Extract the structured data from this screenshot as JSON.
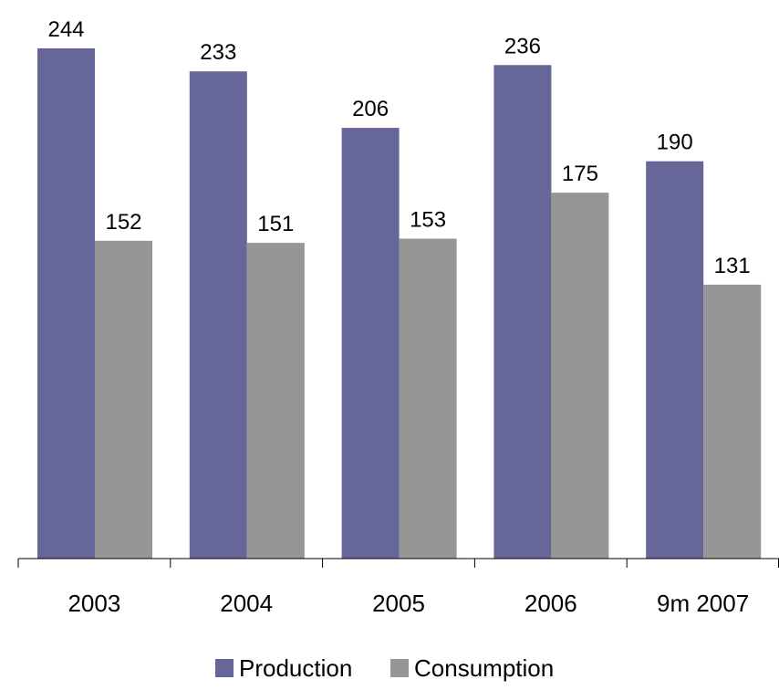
{
  "chart_data": {
    "type": "bar",
    "categories": [
      "2003",
      "2004",
      "2005",
      "2006",
      "9m 2007"
    ],
    "series": [
      {
        "name": "Production",
        "values": [
          244,
          233,
          206,
          236,
          190
        ],
        "color": "#666699"
      },
      {
        "name": "Consumption",
        "values": [
          152,
          151,
          153,
          175,
          131
        ],
        "color": "#969696"
      }
    ],
    "data_labels": true,
    "grid": false,
    "legend_position": "bottom"
  }
}
